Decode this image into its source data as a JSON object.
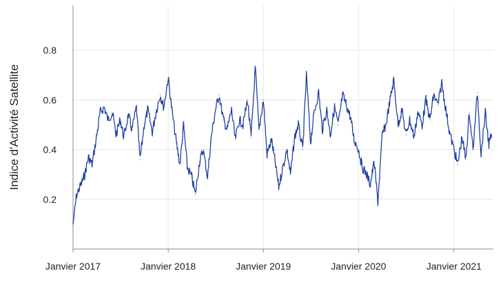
{
  "chart_data": {
    "type": "line",
    "title": "",
    "xlabel": "",
    "ylabel": "Indice d'Activité Satellite",
    "x_range": [
      "2017-01-01",
      "2021-06-01"
    ],
    "ylim": [
      0,
      0.98
    ],
    "y_ticks": [
      0.2,
      0.4,
      0.6,
      0.8
    ],
    "y_tick_labels": [
      "0.2",
      "0.4",
      "0.6",
      "0.8"
    ],
    "x_ticks": [
      "2017-01-01",
      "2018-01-01",
      "2019-01-01",
      "2020-01-01",
      "2021-01-01"
    ],
    "x_tick_labels": [
      "Janvier 2017",
      "Janvier 2018",
      "Janvier 2019",
      "Janvier 2020",
      "Janvier 2021"
    ],
    "grid": true,
    "legend": "none",
    "colors": {
      "line": "#1f3fa0",
      "grid": "#e6e6e6"
    },
    "series": [
      {
        "x": [
          "2017-01-01",
          "2017-01-15",
          "2017-02-01",
          "2017-02-15",
          "2017-03-01",
          "2017-03-15",
          "2017-04-01",
          "2017-04-15",
          "2017-05-01",
          "2017-05-15",
          "2017-06-01",
          "2017-06-15",
          "2017-07-01",
          "2017-07-15",
          "2017-08-01",
          "2017-08-15",
          "2017-09-01",
          "2017-09-15",
          "2017-10-01",
          "2017-10-15",
          "2017-11-01",
          "2017-11-15",
          "2017-12-01",
          "2017-12-15",
          "2018-01-01",
          "2018-01-15",
          "2018-02-01",
          "2018-02-15",
          "2018-03-01",
          "2018-03-15",
          "2018-04-01",
          "2018-04-15",
          "2018-05-01",
          "2018-05-15",
          "2018-06-01",
          "2018-06-15",
          "2018-07-01",
          "2018-07-15",
          "2018-08-01",
          "2018-08-15",
          "2018-09-01",
          "2018-09-15",
          "2018-10-01",
          "2018-10-15",
          "2018-11-01",
          "2018-11-15",
          "2018-12-01",
          "2018-12-15",
          "2019-01-01",
          "2019-01-15",
          "2019-02-01",
          "2019-02-15",
          "2019-03-01",
          "2019-03-15",
          "2019-04-01",
          "2019-04-15",
          "2019-05-01",
          "2019-05-15",
          "2019-06-01",
          "2019-06-15",
          "2019-07-01",
          "2019-07-15",
          "2019-08-01",
          "2019-08-15",
          "2019-09-01",
          "2019-09-15",
          "2019-10-01",
          "2019-10-15",
          "2019-11-01",
          "2019-11-15",
          "2019-12-01",
          "2019-12-15",
          "2020-01-01",
          "2020-01-15",
          "2020-02-01",
          "2020-02-15",
          "2020-03-01",
          "2020-03-15",
          "2020-04-01",
          "2020-04-15",
          "2020-05-01",
          "2020-05-15",
          "2020-06-01",
          "2020-06-15",
          "2020-07-01",
          "2020-07-15",
          "2020-08-01",
          "2020-08-15",
          "2020-09-01",
          "2020-09-15",
          "2020-10-01",
          "2020-10-15",
          "2020-11-01",
          "2020-11-15",
          "2020-12-01",
          "2020-12-15",
          "2021-01-01",
          "2021-01-15",
          "2021-02-01",
          "2021-02-15",
          "2021-03-01",
          "2021-03-15",
          "2021-04-01",
          "2021-04-15",
          "2021-05-01",
          "2021-05-15",
          "2021-05-25"
        ],
        "values": [
          0.1,
          0.22,
          0.26,
          0.3,
          0.37,
          0.34,
          0.45,
          0.55,
          0.57,
          0.52,
          0.55,
          0.46,
          0.52,
          0.45,
          0.54,
          0.48,
          0.57,
          0.36,
          0.5,
          0.56,
          0.47,
          0.55,
          0.62,
          0.57,
          0.69,
          0.56,
          0.43,
          0.34,
          0.5,
          0.33,
          0.29,
          0.22,
          0.35,
          0.4,
          0.29,
          0.45,
          0.56,
          0.62,
          0.52,
          0.48,
          0.56,
          0.44,
          0.52,
          0.5,
          0.6,
          0.45,
          0.73,
          0.48,
          0.6,
          0.38,
          0.44,
          0.35,
          0.25,
          0.32,
          0.4,
          0.3,
          0.45,
          0.5,
          0.4,
          0.7,
          0.43,
          0.55,
          0.63,
          0.48,
          0.56,
          0.46,
          0.57,
          0.5,
          0.62,
          0.58,
          0.53,
          0.44,
          0.4,
          0.33,
          0.3,
          0.26,
          0.35,
          0.19,
          0.46,
          0.5,
          0.6,
          0.68,
          0.5,
          0.56,
          0.46,
          0.52,
          0.45,
          0.55,
          0.5,
          0.6,
          0.52,
          0.62,
          0.58,
          0.67,
          0.56,
          0.47,
          0.4,
          0.34,
          0.45,
          0.36,
          0.55,
          0.4,
          0.63,
          0.38,
          0.55,
          0.42,
          0.46
        ]
      }
    ]
  }
}
